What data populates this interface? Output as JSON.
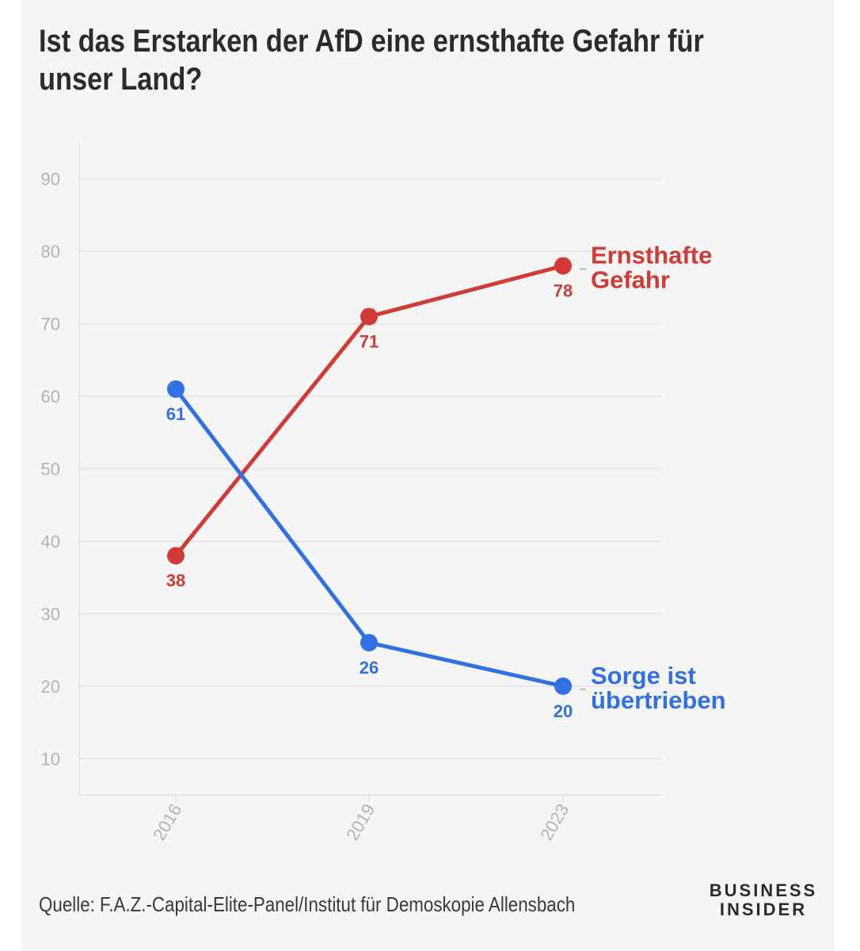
{
  "header": {
    "title_line1": "Ist das Erstarken der AfD eine ernsthafte Gefahr für",
    "title_line2": "unser Land?"
  },
  "footer": {
    "source": "Quelle: F.A.Z.-Capital-Elite-Panel/Institut für Demoskopie Allensbach",
    "logo_line1": "BUSINESS",
    "logo_line2": "INSIDER"
  },
  "chart_data": {
    "type": "line",
    "title": "Ist das Erstarken der AfD eine ernsthafte Gefahr für unser Land?",
    "xlabel": "",
    "ylabel": "",
    "x": [
      "2016",
      "2019",
      "2023"
    ],
    "y_ticks": [
      10,
      20,
      30,
      40,
      50,
      60,
      70,
      80,
      90
    ],
    "ylim": [
      5,
      95
    ],
    "grid": true,
    "legend": "direct labels at line ends (right)",
    "series": [
      {
        "name_lines": [
          "Ernsthafte",
          "Gefahr"
        ],
        "values": [
          38,
          71,
          78
        ],
        "color": "#d03b35",
        "label_position": "below"
      },
      {
        "name_lines": [
          "Sorge ist",
          "übertrieben"
        ],
        "values": [
          61,
          26,
          20
        ],
        "color": "#3170e3",
        "label_position": "below"
      }
    ],
    "colors": {
      "grid": "#e6e6e6",
      "tick_text": "#b3b3b3"
    }
  }
}
